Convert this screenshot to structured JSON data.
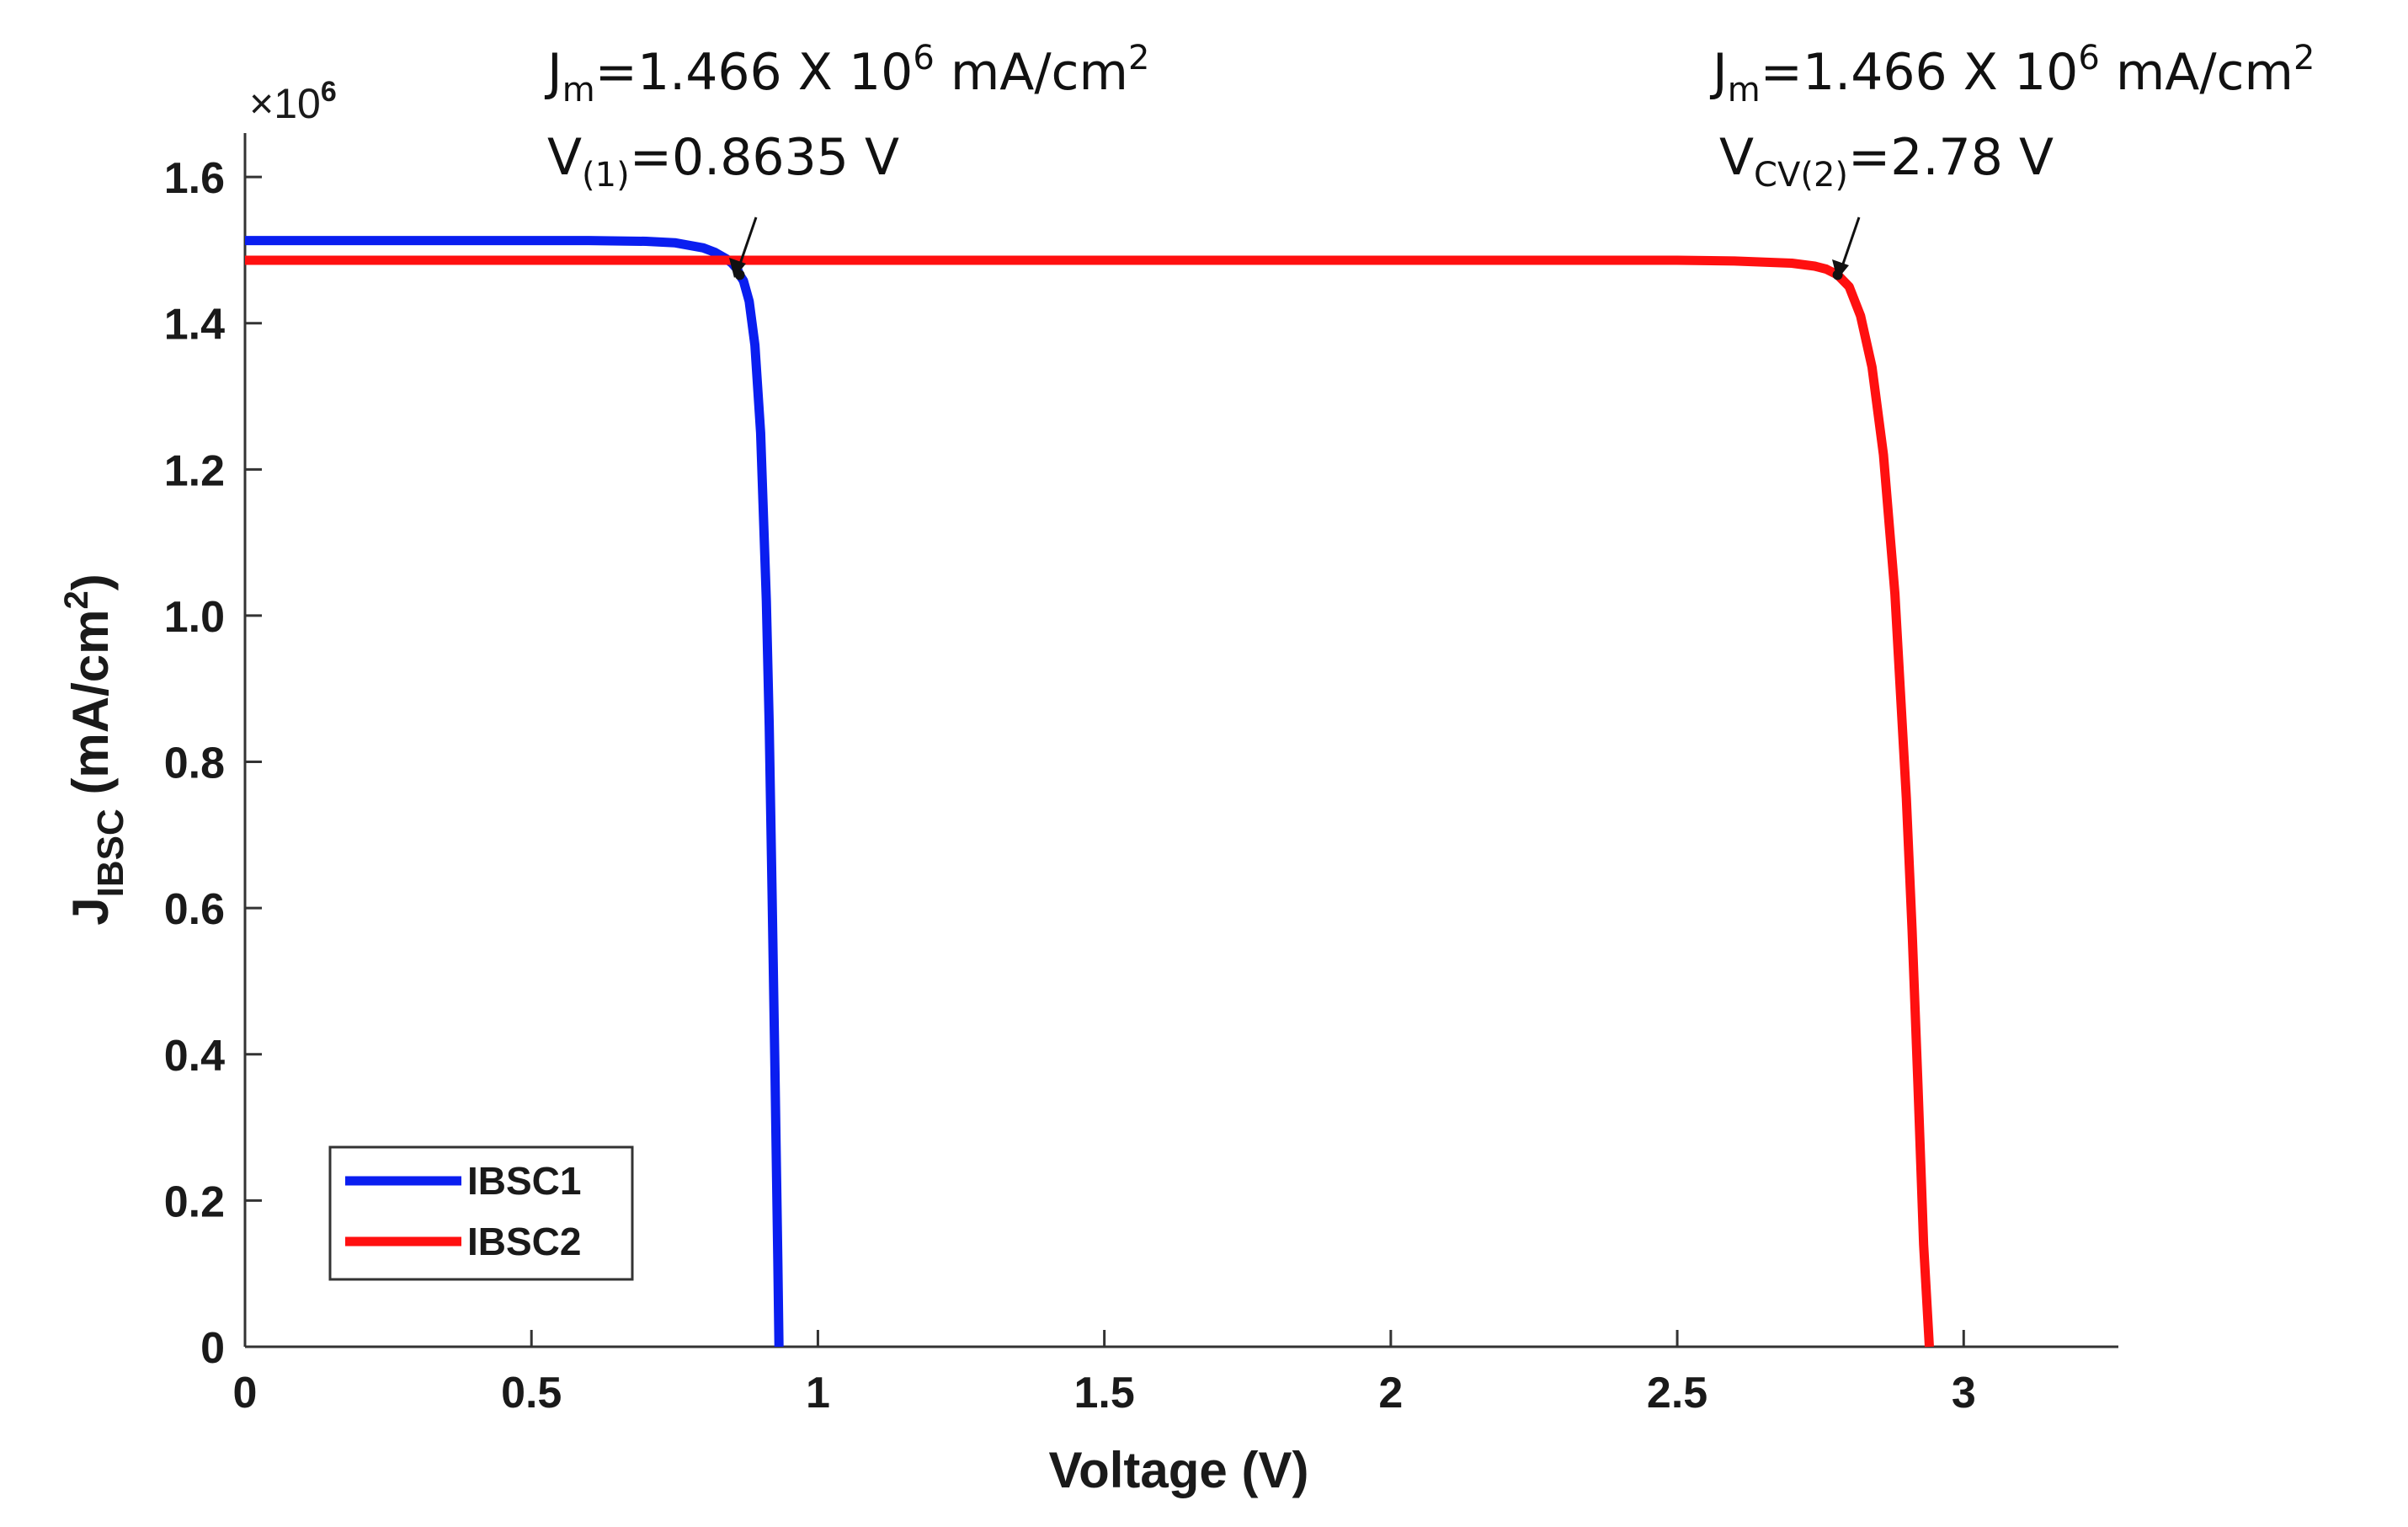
{
  "chart_data": {
    "type": "line",
    "title": "",
    "xlabel": "Voltage (V)",
    "ylabel": "J",
    "ylabel_sub": "IBSC",
    "ylabel_unit": " (mA/cm",
    "ylabel_unit_sup": "2",
    "ylabel_unit_close": ")",
    "xlim": [
      0,
      3.27
    ],
    "ylim": [
      0,
      1.66
    ],
    "y_multiplier": "×10",
    "y_multiplier_exp": "6",
    "xticks": [
      0,
      0.5,
      1,
      1.5,
      2,
      2.5,
      3
    ],
    "xtick_labels": [
      "0",
      "0.5",
      "1",
      "1.5",
      "2",
      "2.5",
      "3"
    ],
    "yticks": [
      0,
      0.2,
      0.4,
      0.6,
      0.8,
      1.0,
      1.2,
      1.4,
      1.6
    ],
    "ytick_labels": [
      "0",
      "0.2",
      "0.4",
      "0.6",
      "0.8",
      "1.0",
      "1.2",
      "1.4",
      "1.6"
    ],
    "grid": false,
    "legend_position": "bottom-left",
    "series": [
      {
        "name": "IBSC1",
        "color": "#0a1ef0",
        "voc": 0.932,
        "x": [
          0,
          0.1,
          0.2,
          0.3,
          0.4,
          0.5,
          0.6,
          0.7,
          0.75,
          0.8,
          0.82,
          0.84,
          0.85,
          0.86,
          0.8635,
          0.87,
          0.88,
          0.89,
          0.9,
          0.91,
          0.915,
          0.92,
          0.925,
          0.93,
          0.932
        ],
        "y": [
          1.513,
          1.513,
          1.513,
          1.513,
          1.513,
          1.513,
          1.513,
          1.512,
          1.51,
          1.503,
          1.497,
          1.488,
          1.482,
          1.473,
          1.466,
          1.458,
          1.43,
          1.37,
          1.25,
          1.02,
          0.85,
          0.62,
          0.38,
          0.12,
          0
        ]
      },
      {
        "name": "IBSC2",
        "color": "#ff1010",
        "voc": 2.94,
        "x": [
          0,
          0.5,
          1.0,
          1.5,
          2.0,
          2.5,
          2.6,
          2.7,
          2.74,
          2.76,
          2.78,
          2.8,
          2.82,
          2.84,
          2.86,
          2.88,
          2.9,
          2.91,
          2.92,
          2.93,
          2.94
        ],
        "y": [
          1.486,
          1.486,
          1.486,
          1.486,
          1.486,
          1.486,
          1.485,
          1.482,
          1.478,
          1.474,
          1.466,
          1.45,
          1.41,
          1.34,
          1.22,
          1.03,
          0.75,
          0.57,
          0.36,
          0.14,
          0
        ]
      }
    ],
    "annotations": [
      {
        "series": "IBSC1",
        "x": 0.8635,
        "y": 1.466,
        "line1_J": "J",
        "line1_sub": "m",
        "line1_text": "=1.466 X 10",
        "line1_sup": "6",
        "line1_unit": " mA/cm",
        "line1_unit_sup": "2",
        "line2_V": "V",
        "line2_sub": "(1)",
        "line2_text": "=0.8635 V"
      },
      {
        "series": "IBSC2",
        "x": 2.78,
        "y": 1.466,
        "line1_J": "J",
        "line1_sub": "m",
        "line1_text": "=1.466 X 10",
        "line1_sup": "6",
        "line1_unit": " mA/cm",
        "line1_unit_sup": "2",
        "line2_V": "V",
        "line2_sub": "CV(2)",
        "line2_text": "=2.78 V"
      }
    ]
  }
}
